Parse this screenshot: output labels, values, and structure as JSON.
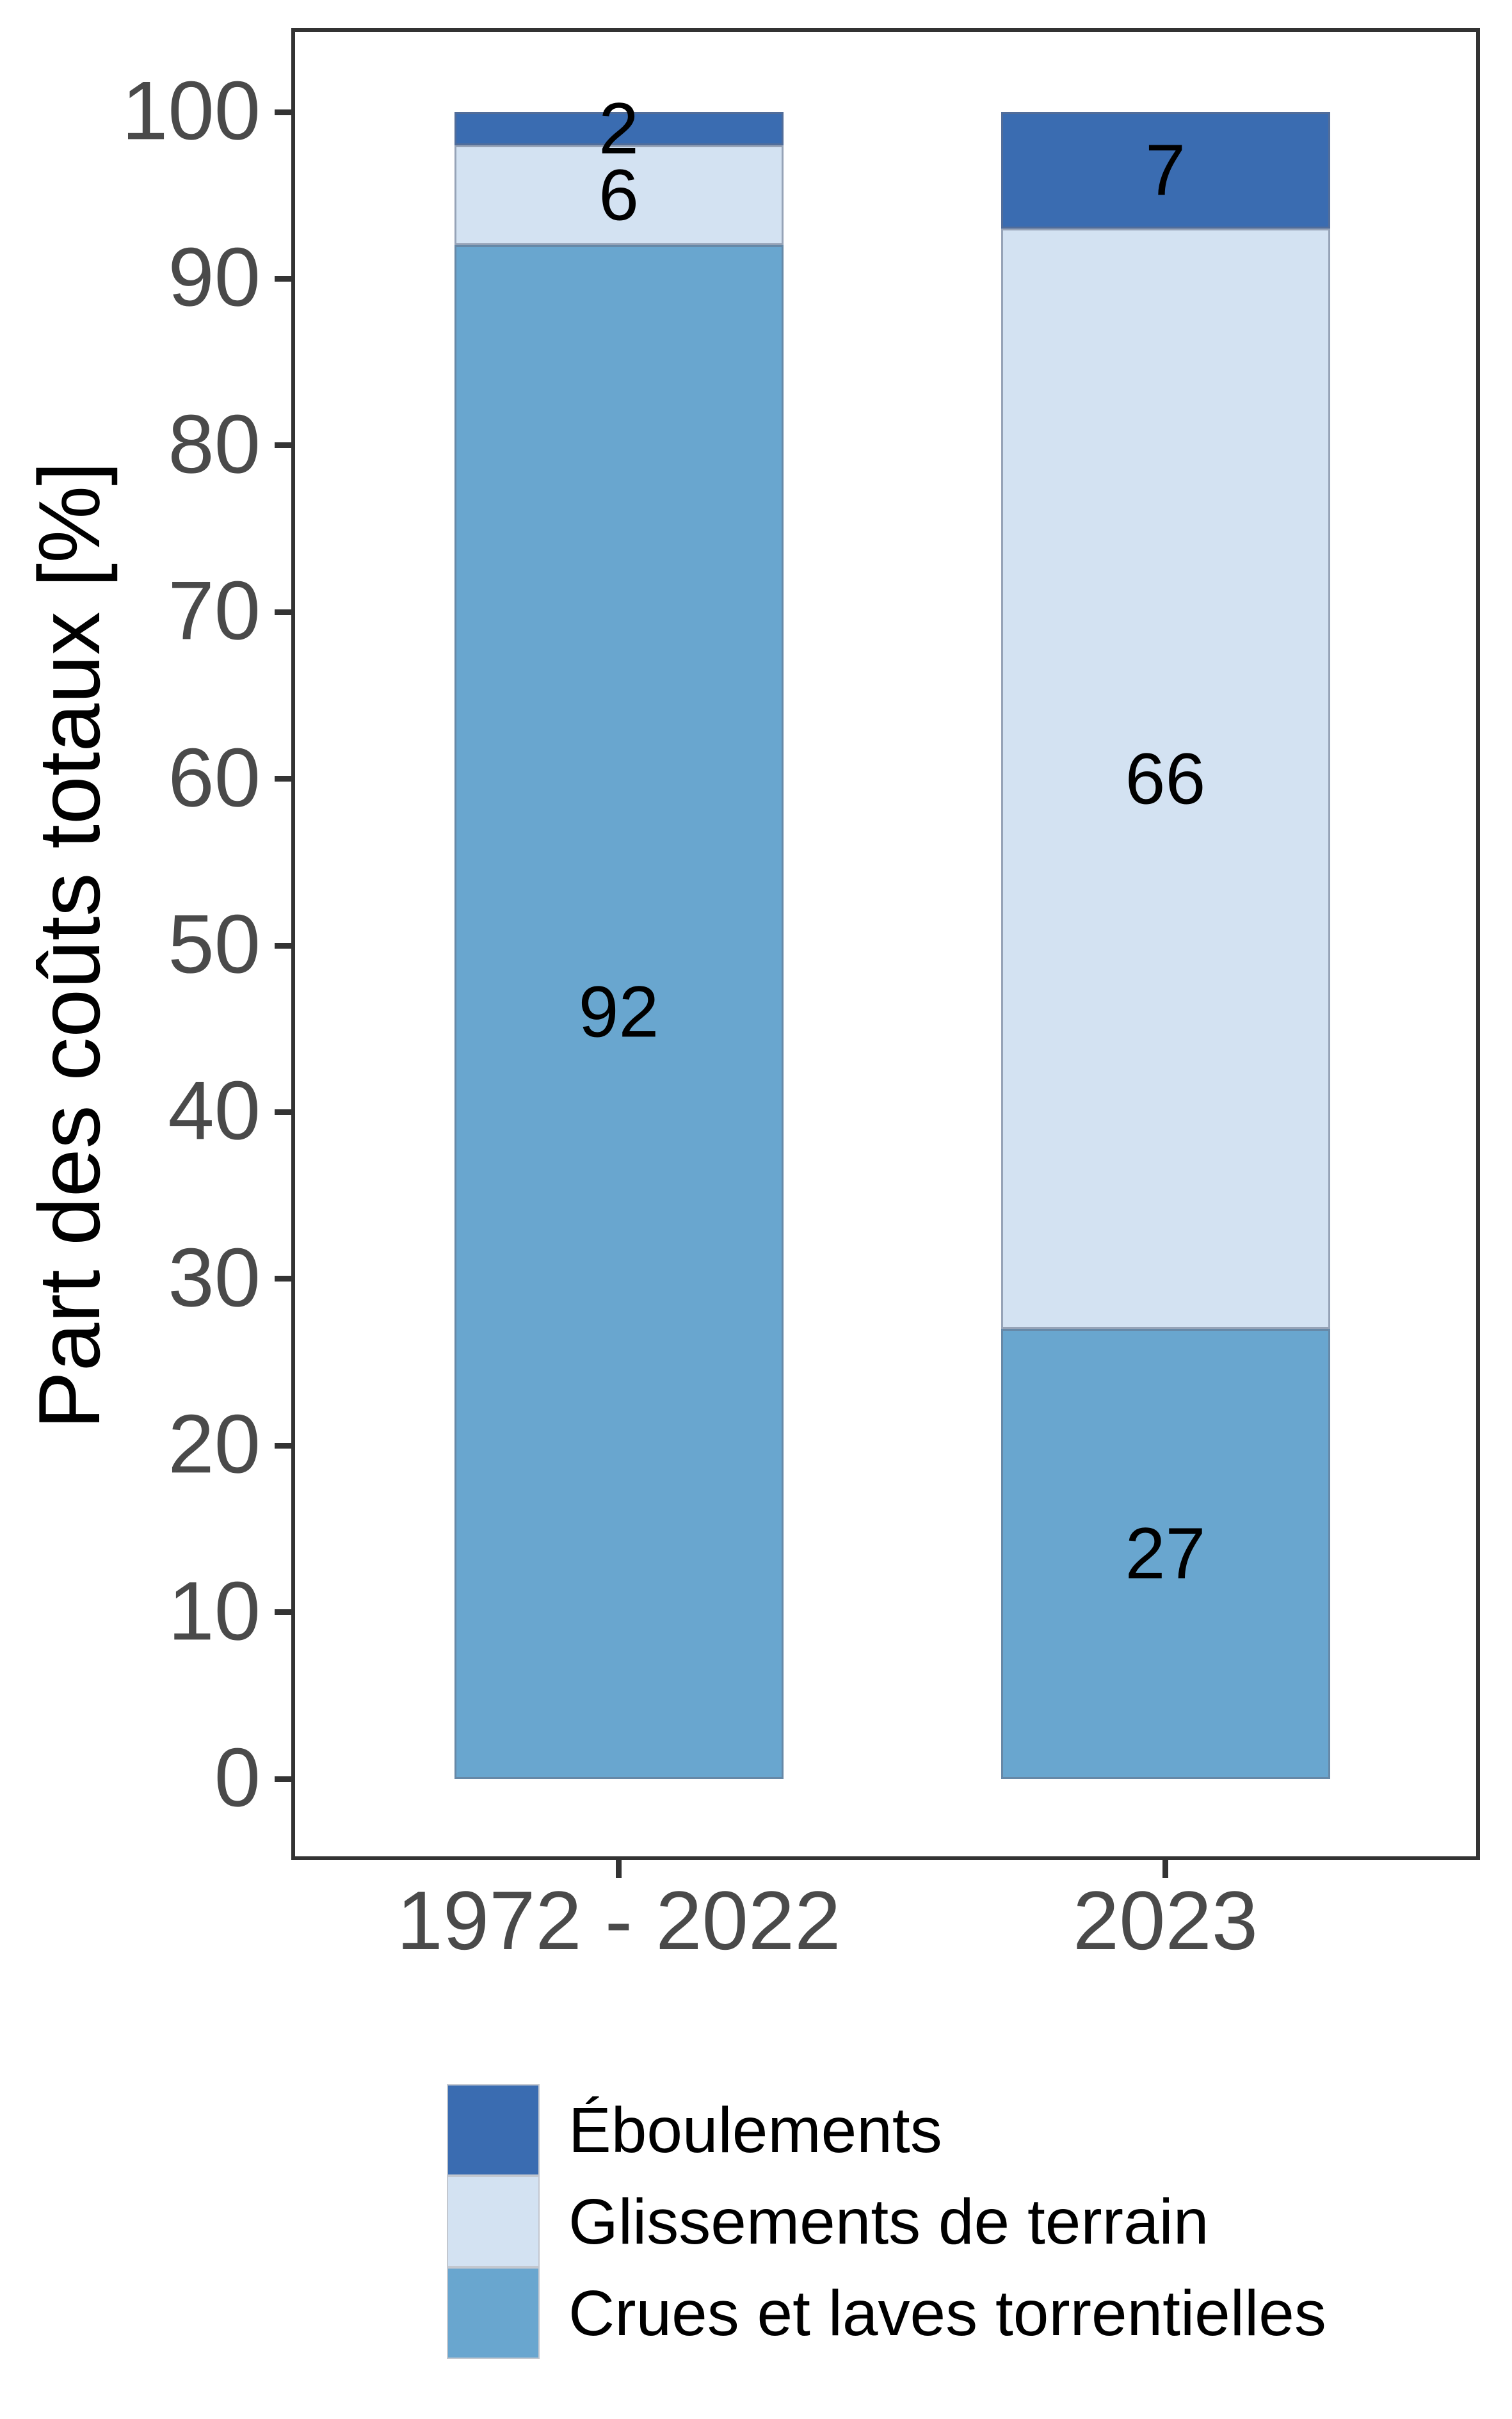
{
  "chart_data": {
    "type": "bar",
    "stacked": true,
    "title": "",
    "ylabel": "Part des coûts totaux [%]",
    "xlabel": "",
    "ylim": [
      0,
      100
    ],
    "yticks": [
      0,
      10,
      20,
      30,
      40,
      50,
      60,
      70,
      80,
      90,
      100
    ],
    "categories": [
      "1972 - 2022",
      "2023"
    ],
    "series": [
      {
        "name": "Éboulements",
        "color": "#3A6CB1",
        "values": [
          2,
          7
        ]
      },
      {
        "name": "Glissements de terrain",
        "color": "#D3E2F2",
        "values": [
          6,
          66
        ]
      },
      {
        "name": "Crues et laves torrentielles",
        "color": "#69A6CF",
        "values": [
          92,
          27
        ]
      }
    ],
    "legend_position": "bottom",
    "grid": false,
    "bar_value_labels": true
  },
  "style": {
    "axis_text_color": "#4a4a4a",
    "axis_line_color": "#333333",
    "value_label_color": "#000000",
    "legend_text_color": "#000000",
    "background_color": "#ffffff"
  }
}
